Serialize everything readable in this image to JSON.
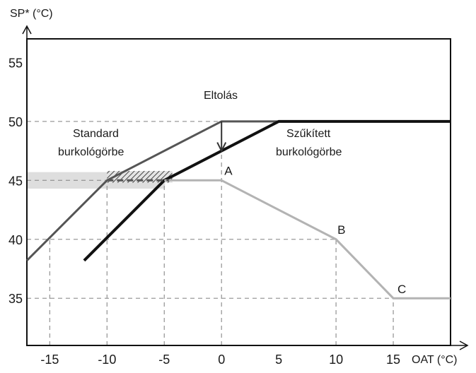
{
  "chart_data": {
    "type": "line",
    "xlabel": "OAT (°C)",
    "ylabel": "SP* (°C)",
    "xlim": [
      -17,
      20
    ],
    "ylim": [
      31,
      57
    ],
    "x_ticks": [
      -15,
      -10,
      -5,
      0,
      5,
      10,
      15
    ],
    "x_tick_labels": [
      "-15",
      "-10",
      "-5",
      "0",
      "5",
      "10",
      "15"
    ],
    "y_ticks": [
      35,
      40,
      45,
      50,
      55
    ],
    "y_tick_labels": [
      "35",
      "40",
      "45",
      "50",
      "55"
    ],
    "grid": "dashed reference lines",
    "series": [
      {
        "points": [
          [
            -17,
            38.2
          ],
          [
            -10,
            45
          ],
          [
            0,
            50
          ],
          [
            20,
            50
          ]
        ],
        "color": "#555555"
      },
      {
        "points": [
          [
            -12,
            38.2
          ],
          [
            -5,
            45
          ],
          [
            5,
            50
          ],
          [
            20,
            50
          ]
        ],
        "color": "#111111"
      },
      {
        "points": [
          [
            -5,
            45
          ],
          [
            0,
            45
          ],
          [
            10,
            40
          ],
          [
            15,
            35
          ],
          [
            20,
            35
          ]
        ],
        "color": "#b3b3b3"
      }
    ],
    "annotations": {
      "offset": "Eltolás",
      "standard_line1": "Standard",
      "standard_line2": "burkológörbe",
      "narrowed_line1": "Szűkített",
      "narrowed_line2": "burkológörbe",
      "point_a": "A",
      "point_b": "B",
      "point_c": "C"
    },
    "point_positions": {
      "A": [
        0,
        45
      ],
      "B": [
        10,
        40
      ],
      "C": [
        15,
        35
      ]
    },
    "shaded_band": {
      "y_range": [
        44.3,
        45.7
      ],
      "x_range": [
        -17,
        -5
      ]
    },
    "hatched_region": {
      "x_range": [
        -10,
        -4.3
      ],
      "y_range": [
        44.8,
        45.8
      ]
    },
    "offset_arrow": {
      "x": 0,
      "from_y": 50,
      "to_y": 47.5
    }
  }
}
